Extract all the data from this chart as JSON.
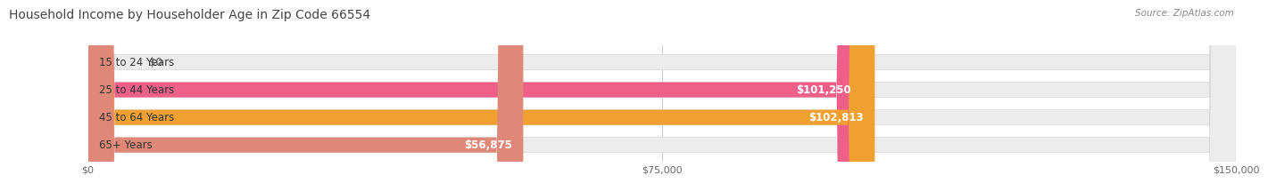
{
  "title": "Household Income by Householder Age in Zip Code 66554",
  "source": "Source: ZipAtlas.com",
  "categories": [
    "15 to 24 Years",
    "25 to 44 Years",
    "45 to 64 Years",
    "65+ Years"
  ],
  "values": [
    0,
    101250,
    102813,
    56875
  ],
  "bar_colors": [
    "#b0b0e0",
    "#ee5f8a",
    "#f0a030",
    "#e08878"
  ],
  "bar_bg_color": "#ececec",
  "bar_border_color": "#d8d8d8",
  "background_color": "#ffffff",
  "xlim": [
    0,
    150000
  ],
  "xticks": [
    0,
    75000,
    150000
  ],
  "xtick_labels": [
    "$0",
    "$75,000",
    "$150,000"
  ],
  "value_labels": [
    "$0",
    "$101,250",
    "$102,813",
    "$56,875"
  ],
  "title_fontsize": 10,
  "label_fontsize": 8.5,
  "tick_fontsize": 8,
  "source_fontsize": 7.5,
  "bar_height": 0.55,
  "title_color": "#444444",
  "label_color": "#333333",
  "value_color_inside": "#ffffff",
  "value_color_outside": "#555555",
  "grid_color": "#cccccc"
}
